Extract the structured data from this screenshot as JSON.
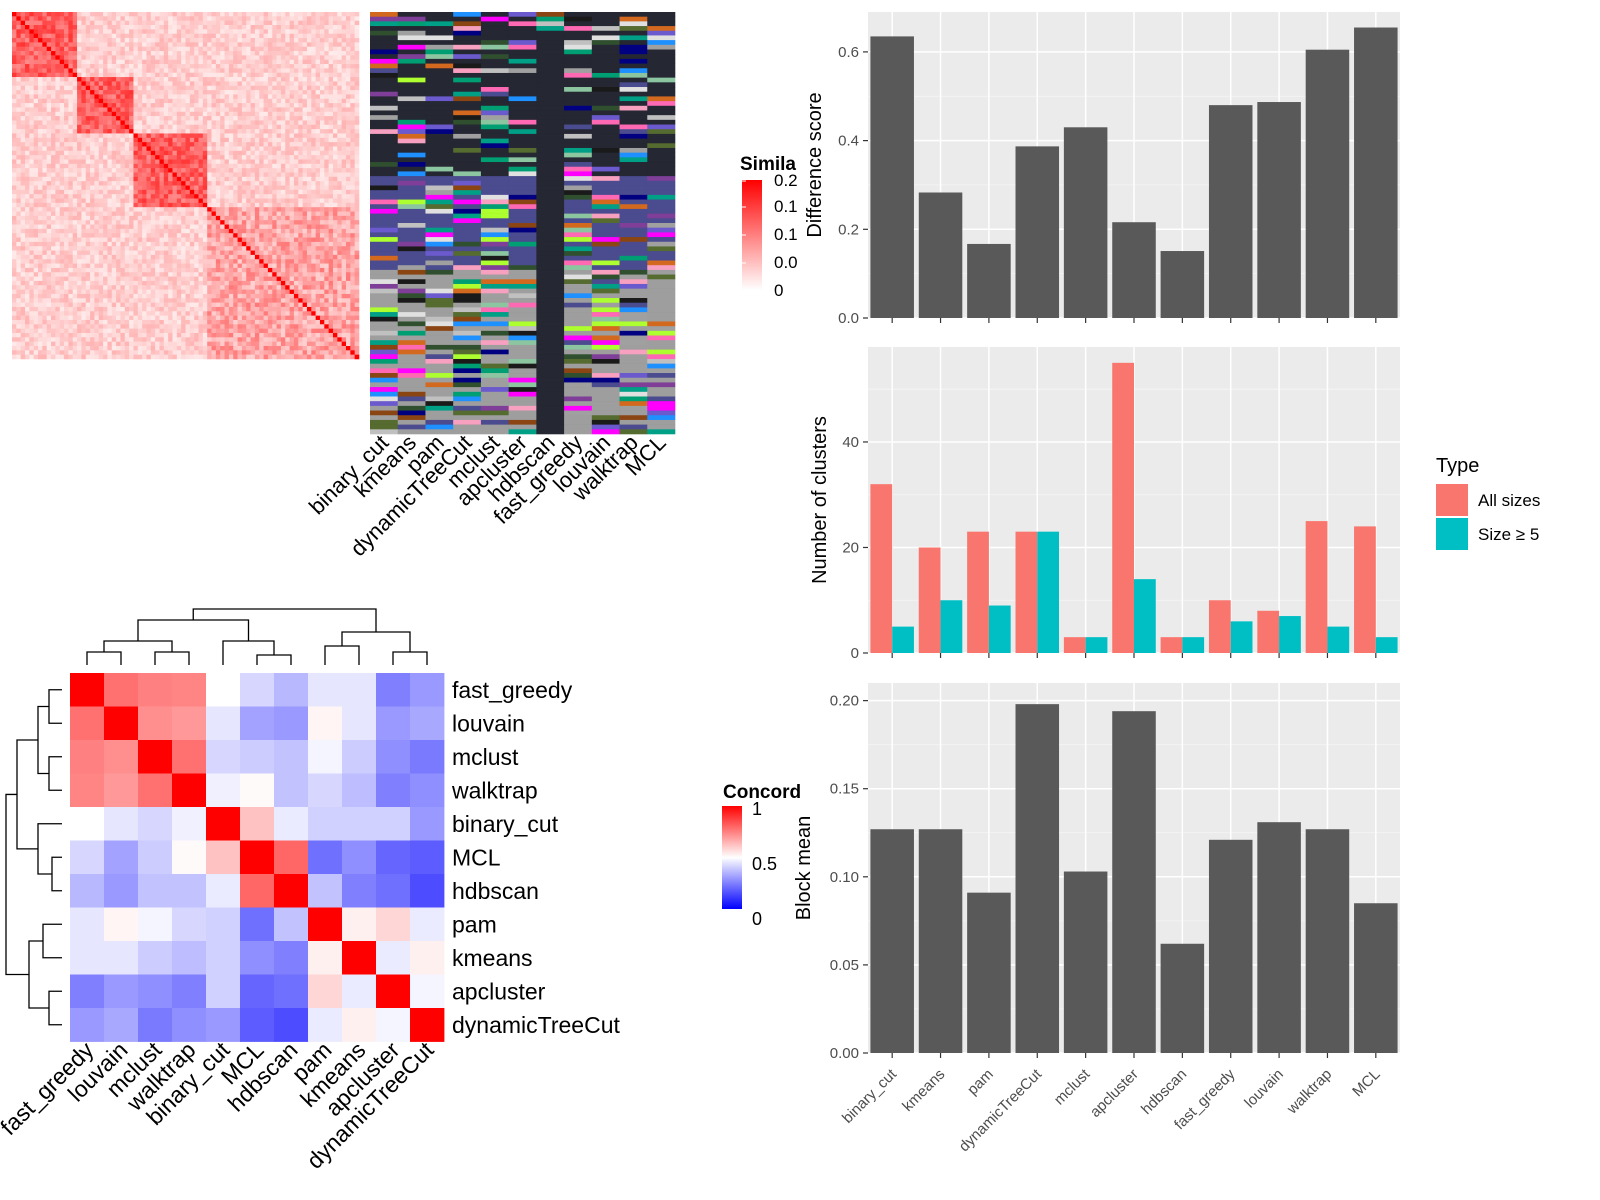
{
  "panels": {
    "similarity_heatmap": {
      "legend_title": "Simila",
      "legend_ticks": [
        "0.2",
        "0.1",
        "0.1",
        "0.0",
        "0"
      ],
      "legend_colors": [
        "#ff0000",
        "#ffffff"
      ]
    },
    "cluster_annotation": {
      "methods": [
        "binary_cut",
        "kmeans",
        "pam",
        "dynamicTreeCut",
        "mclust",
        "apcluster",
        "hdbscan",
        "fast_greedy",
        "louvain",
        "walktrap",
        "MCL"
      ]
    },
    "concordance_heatmap": {
      "legend_title": "Concord",
      "legend_ticks": [
        "1",
        "0.5",
        "0"
      ],
      "legend_colors": {
        "high": "#ff0000",
        "mid": "#ffffff",
        "low": "#0000ff"
      }
    }
  },
  "chart_data": [
    {
      "type": "heatmap",
      "id": "concordance",
      "row_labels": [
        "fast_greedy",
        "louvain",
        "mclust",
        "walktrap",
        "binary_cut",
        "MCL",
        "hdbscan",
        "pam",
        "kmeans",
        "apcluster",
        "dynamicTreeCut"
      ],
      "col_labels": [
        "fast_greedy",
        "louvain",
        "mclust",
        "walktrap",
        "binary_cut",
        "MCL",
        "hdbscan",
        "pam",
        "kmeans",
        "apcluster",
        "dynamicTreeCut"
      ],
      "scale": [
        0,
        0.5,
        1
      ],
      "legend_title": "Concord",
      "values": [
        [
          1.0,
          0.78,
          0.75,
          0.74,
          0.5,
          0.42,
          0.36,
          0.45,
          0.45,
          0.25,
          0.3
        ],
        [
          0.78,
          1.0,
          0.72,
          0.7,
          0.45,
          0.32,
          0.3,
          0.52,
          0.45,
          0.3,
          0.33
        ],
        [
          0.75,
          0.72,
          1.0,
          0.78,
          0.42,
          0.4,
          0.38,
          0.48,
          0.4,
          0.28,
          0.24
        ],
        [
          0.74,
          0.7,
          0.78,
          1.0,
          0.47,
          0.51,
          0.38,
          0.42,
          0.37,
          0.25,
          0.28
        ],
        [
          0.5,
          0.45,
          0.42,
          0.47,
          1.0,
          0.62,
          0.46,
          0.41,
          0.41,
          0.41,
          0.3
        ],
        [
          0.42,
          0.32,
          0.4,
          0.51,
          0.62,
          1.0,
          0.8,
          0.22,
          0.28,
          0.2,
          0.18
        ],
        [
          0.36,
          0.3,
          0.38,
          0.38,
          0.46,
          0.8,
          1.0,
          0.38,
          0.25,
          0.22,
          0.15
        ],
        [
          0.45,
          0.52,
          0.48,
          0.42,
          0.41,
          0.22,
          0.38,
          1.0,
          0.53,
          0.58,
          0.46
        ],
        [
          0.45,
          0.45,
          0.4,
          0.37,
          0.41,
          0.28,
          0.25,
          0.53,
          1.0,
          0.46,
          0.53
        ],
        [
          0.25,
          0.3,
          0.28,
          0.25,
          0.41,
          0.2,
          0.22,
          0.58,
          0.46,
          1.0,
          0.48
        ],
        [
          0.3,
          0.33,
          0.24,
          0.28,
          0.3,
          0.18,
          0.15,
          0.46,
          0.53,
          0.48,
          1.0
        ]
      ]
    },
    {
      "type": "bar",
      "id": "difference_score",
      "categories": [
        "binary_cut",
        "kmeans",
        "pam",
        "dynamicTreeCut",
        "mclust",
        "apcluster",
        "hdbscan",
        "fast_greedy",
        "louvain",
        "walktrap",
        "MCL"
      ],
      "values": [
        0.635,
        0.283,
        0.167,
        0.387,
        0.43,
        0.216,
        0.151,
        0.48,
        0.487,
        0.605,
        0.655
      ],
      "xlabel": "",
      "ylabel": "Difference score",
      "ylim": [
        0,
        0.69
      ],
      "yticks": [
        "0.0",
        "0.2",
        "0.4",
        "0.6"
      ],
      "grid": true
    },
    {
      "type": "bar",
      "id": "number_of_clusters",
      "categories": [
        "binary_cut",
        "kmeans",
        "pam",
        "dynamicTreeCut",
        "mclust",
        "apcluster",
        "hdbscan",
        "fast_greedy",
        "louvain",
        "walktrap",
        "MCL"
      ],
      "series": [
        {
          "name": "All sizes",
          "color": "#F8766D",
          "values": [
            32,
            20,
            23,
            23,
            3,
            55,
            3,
            10,
            8,
            25,
            24
          ]
        },
        {
          "name": "Size ≥ 5",
          "color": "#00BFC4",
          "values": [
            5,
            10,
            9,
            23,
            3,
            14,
            3,
            6,
            7,
            5,
            3
          ]
        }
      ],
      "xlabel": "",
      "ylabel": "Number of clusters",
      "ylim": [
        0,
        58
      ],
      "yticks": [
        "0",
        "20",
        "40"
      ],
      "legend_title": "Type",
      "legend_position": "right",
      "grid": true
    },
    {
      "type": "bar",
      "id": "block_mean",
      "categories": [
        "binary_cut",
        "kmeans",
        "pam",
        "dynamicTreeCut",
        "mclust",
        "apcluster",
        "hdbscan",
        "fast_greedy",
        "louvain",
        "walktrap",
        "MCL"
      ],
      "values": [
        0.127,
        0.127,
        0.091,
        0.198,
        0.103,
        0.194,
        0.062,
        0.121,
        0.131,
        0.127,
        0.085
      ],
      "xlabel": "",
      "ylabel": "Block mean",
      "ylim": [
        0,
        0.21
      ],
      "yticks": [
        "0.00",
        "0.05",
        "0.10",
        "0.15",
        "0.20"
      ],
      "grid": true
    }
  ]
}
